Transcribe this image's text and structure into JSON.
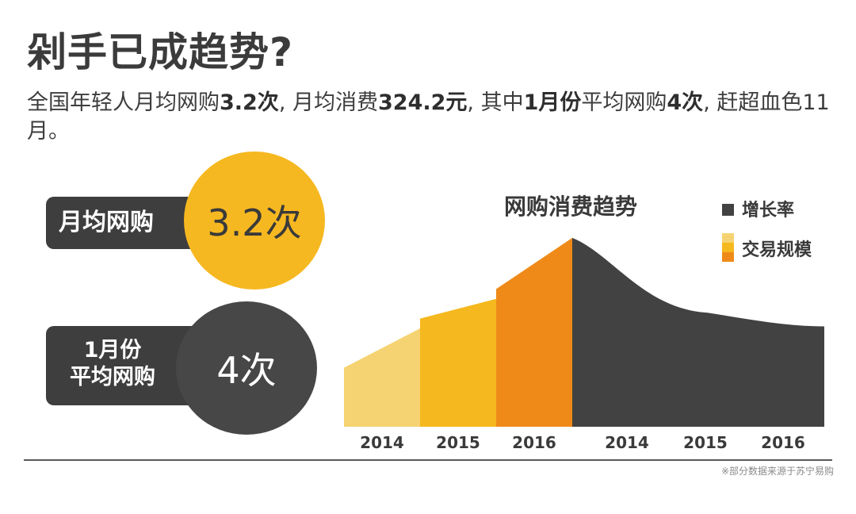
{
  "header": {
    "title": "剁手已成趋势?",
    "subtitle": {
      "t1": "全国年轻人月均网购",
      "b1": "3.2次",
      "t2": ", 月均消费",
      "b2": "324.2元",
      "t3": ", 其中",
      "b3": "1月份",
      "t4": "平均网购",
      "b4": "4次",
      "t5": ", 赶超血色11月。"
    }
  },
  "stats": {
    "monthly": {
      "label": "月均网购",
      "value": "3.2次"
    },
    "january": {
      "label_line1": "1月份",
      "label_line2": "平均网购",
      "value": "4次"
    }
  },
  "chart_data": {
    "type": "area",
    "title": "网购消费趋势",
    "legend": [
      {
        "name": "增长率",
        "colors": [
          "#424242"
        ]
      },
      {
        "name": "交易规模",
        "colors": [
          "#f5d372",
          "#f5b81e",
          "#ef8a19"
        ]
      }
    ],
    "legend_position": "top-right",
    "ylim": [
      0,
      100
    ],
    "grid": false,
    "series": [
      {
        "name": "交易规模",
        "categories": [
          "2014",
          "2015",
          "2016"
        ],
        "start_values": [
          30,
          55,
          70
        ],
        "end_values": [
          50,
          65,
          96
        ],
        "colors": [
          "#f5d372",
          "#f5b81e",
          "#ef8a19"
        ]
      },
      {
        "name": "增长率",
        "categories": [
          "2014",
          "2015",
          "2016"
        ],
        "values": [
          96,
          58,
          51
        ],
        "color": "#424242"
      }
    ]
  },
  "footer": {
    "note": "※部分数据来源于苏宁易购"
  }
}
